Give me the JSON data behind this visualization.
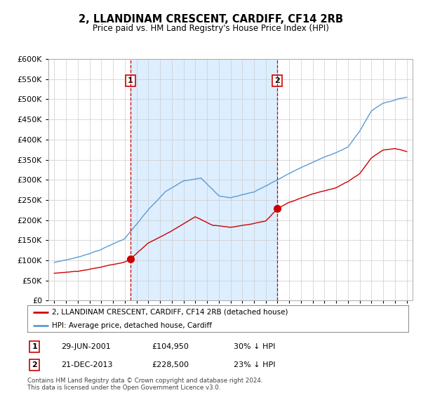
{
  "title": "2, LLANDINAM CRESCENT, CARDIFF, CF14 2RB",
  "subtitle": "Price paid vs. HM Land Registry's House Price Index (HPI)",
  "hpi_label": "HPI: Average price, detached house, Cardiff",
  "property_label": "2, LLANDINAM CRESCENT, CARDIFF, CF14 2RB (detached house)",
  "hpi_color": "#5b9bd5",
  "hpi_fill_color": "#ddeeff",
  "property_color": "#cc0000",
  "vline_color": "#cc0000",
  "transaction1_date": "29-JUN-2001",
  "transaction1_price": "£104,950",
  "transaction1_hpi": "30% ↓ HPI",
  "transaction1_year": 2001.492,
  "transaction2_date": "21-DEC-2013",
  "transaction2_price": "£228,500",
  "transaction2_hpi": "23% ↓ HPI",
  "transaction2_year": 2013.964,
  "ylim_min": 0,
  "ylim_max": 600000,
  "ytick_step": 50000,
  "year_start": 1995,
  "year_end": 2025,
  "footer": "Contains HM Land Registry data © Crown copyright and database right 2024.\nThis data is licensed under the Open Government Licence v3.0.",
  "background_color": "#ffffff",
  "grid_color": "#cccccc"
}
